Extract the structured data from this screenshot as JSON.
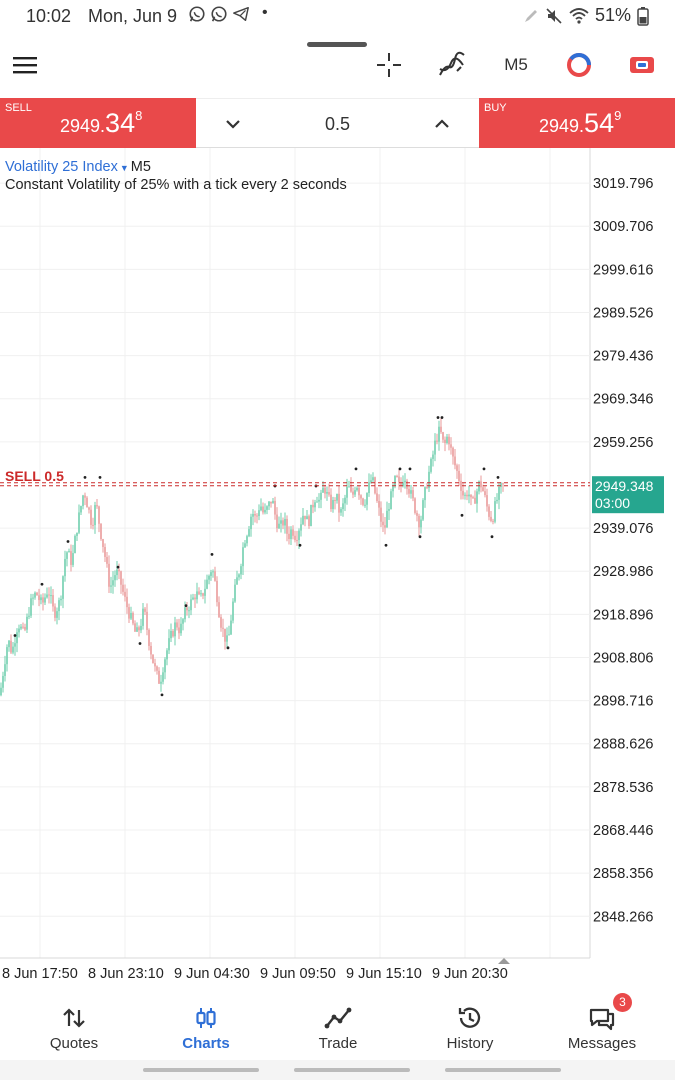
{
  "status_bar": {
    "time": "10:02",
    "date": "Mon, Jun 9",
    "battery": "51%",
    "notification_icons": [
      "whatsapp-icon",
      "whatsapp-icon",
      "telegram-icon"
    ]
  },
  "toolbar": {
    "timeframe": "M5",
    "icons": [
      "menu-icon",
      "crosshair-icon",
      "indicator-icon",
      "ring-icon",
      "trade-icon"
    ]
  },
  "trade_bar": {
    "sell": {
      "label": "SELL",
      "price_small": "2949.",
      "price_big": "34",
      "price_sup": "8"
    },
    "buy": {
      "label": "BUY",
      "price_small": "2949.",
      "price_big": "54",
      "price_sup": "9"
    },
    "volume": "0.5"
  },
  "chart": {
    "symbol": "Volatility 25 Index",
    "timeframe": "M5",
    "description": "Constant Volatility of 25% with a tick every 2 seconds",
    "order_line_label": "SELL 0.5",
    "current_price": "2949.348",
    "countdown": "03:00",
    "colors": {
      "up": "#6fcfae",
      "down": "#e99a9a",
      "order_line": "#cc2a2a",
      "price_tag": "#26a68f"
    }
  },
  "chart_data": {
    "type": "candlestick",
    "y_ticks": [
      "3019.796",
      "3009.706",
      "2999.616",
      "2989.526",
      "2979.436",
      "2969.346",
      "2959.256",
      "2939.076",
      "2928.986",
      "2918.896",
      "2908.806",
      "2898.716",
      "2888.626",
      "2878.536",
      "2868.446",
      "2858.356",
      "2848.266"
    ],
    "ylim": [
      2838.5,
      3028.0
    ],
    "x_ticks": [
      "8 Jun 17:50",
      "8 Jun 23:10",
      "9 Jun 04:30",
      "9 Jun 09:50",
      "9 Jun 15:10",
      "9 Jun 20:30"
    ],
    "current_price": 2949.348,
    "order_price": 2949.348,
    "close_path": [
      [
        0,
        2900
      ],
      [
        4,
        2907
      ],
      [
        8,
        2913
      ],
      [
        12,
        2910
      ],
      [
        18,
        2917
      ],
      [
        24,
        2914
      ],
      [
        30,
        2921
      ],
      [
        36,
        2924
      ],
      [
        42,
        2921
      ],
      [
        48,
        2925
      ],
      [
        54,
        2919
      ],
      [
        60,
        2922
      ],
      [
        66,
        2934
      ],
      [
        72,
        2931
      ],
      [
        76,
        2938
      ],
      [
        80,
        2943
      ],
      [
        84,
        2948
      ],
      [
        88,
        2944
      ],
      [
        92,
        2940
      ],
      [
        96,
        2945
      ],
      [
        100,
        2939
      ],
      [
        104,
        2934
      ],
      [
        110,
        2925
      ],
      [
        116,
        2929
      ],
      [
        120,
        2927
      ],
      [
        124,
        2923
      ],
      [
        128,
        2920
      ],
      [
        132,
        2917
      ],
      [
        136,
        2914
      ],
      [
        140,
        2916
      ],
      [
        144,
        2920
      ],
      [
        148,
        2914
      ],
      [
        152,
        2909
      ],
      [
        156,
        2905
      ],
      [
        160,
        2903
      ],
      [
        164,
        2908
      ],
      [
        170,
        2913
      ],
      [
        176,
        2917
      ],
      [
        180,
        2915
      ],
      [
        186,
        2920
      ],
      [
        192,
        2922
      ],
      [
        196,
        2924
      ],
      [
        200,
        2922
      ],
      [
        206,
        2926
      ],
      [
        212,
        2930
      ],
      [
        216,
        2925
      ],
      [
        220,
        2918
      ],
      [
        224,
        2914
      ],
      [
        228,
        2912
      ],
      [
        232,
        2920
      ],
      [
        236,
        2926
      ],
      [
        240,
        2930
      ],
      [
        244,
        2936
      ],
      [
        248,
        2939
      ],
      [
        252,
        2943
      ],
      [
        256,
        2941
      ],
      [
        260,
        2945
      ],
      [
        264,
        2942
      ],
      [
        268,
        2944
      ],
      [
        272,
        2946
      ],
      [
        276,
        2941
      ],
      [
        280,
        2939
      ],
      [
        284,
        2941
      ],
      [
        288,
        2937
      ],
      [
        292,
        2939
      ],
      [
        296,
        2937
      ],
      [
        300,
        2940
      ],
      [
        304,
        2943
      ],
      [
        308,
        2940
      ],
      [
        312,
        2944
      ],
      [
        316,
        2947
      ],
      [
        320,
        2945
      ],
      [
        324,
        2949
      ],
      [
        328,
        2946
      ],
      [
        332,
        2944
      ],
      [
        336,
        2947
      ],
      [
        340,
        2942
      ],
      [
        344,
        2945
      ],
      [
        348,
        2949
      ],
      [
        352,
        2946
      ],
      [
        356,
        2950
      ],
      [
        360,
        2947
      ],
      [
        364,
        2945
      ],
      [
        368,
        2948
      ],
      [
        372,
        2951
      ],
      [
        376,
        2946
      ],
      [
        380,
        2942
      ],
      [
        384,
        2938
      ],
      [
        388,
        2944
      ],
      [
        392,
        2947
      ],
      [
        396,
        2951
      ],
      [
        400,
        2948
      ],
      [
        404,
        2952
      ],
      [
        408,
        2949
      ],
      [
        412,
        2946
      ],
      [
        416,
        2943
      ],
      [
        420,
        2940
      ],
      [
        424,
        2946
      ],
      [
        428,
        2951
      ],
      [
        432,
        2955
      ],
      [
        436,
        2960
      ],
      [
        440,
        2962
      ],
      [
        444,
        2958
      ],
      [
        448,
        2961
      ],
      [
        452,
        2956
      ],
      [
        456,
        2953
      ],
      [
        460,
        2950
      ],
      [
        464,
        2946
      ],
      [
        468,
        2948
      ],
      [
        472,
        2944
      ],
      [
        476,
        2947
      ],
      [
        480,
        2950
      ],
      [
        484,
        2947
      ],
      [
        488,
        2943
      ],
      [
        492,
        2941
      ],
      [
        496,
        2945
      ],
      [
        500,
        2948
      ],
      [
        504,
        2949.3
      ]
    ]
  },
  "bottom_nav": {
    "items": [
      {
        "label": "Quotes",
        "icon": "quotes-icon",
        "active": false
      },
      {
        "label": "Charts",
        "icon": "charts-icon",
        "active": true
      },
      {
        "label": "Trade",
        "icon": "trade-line-icon",
        "active": false
      },
      {
        "label": "History",
        "icon": "history-icon",
        "active": false
      },
      {
        "label": "Messages",
        "icon": "messages-icon",
        "active": false
      }
    ],
    "messages_badge": "3"
  }
}
